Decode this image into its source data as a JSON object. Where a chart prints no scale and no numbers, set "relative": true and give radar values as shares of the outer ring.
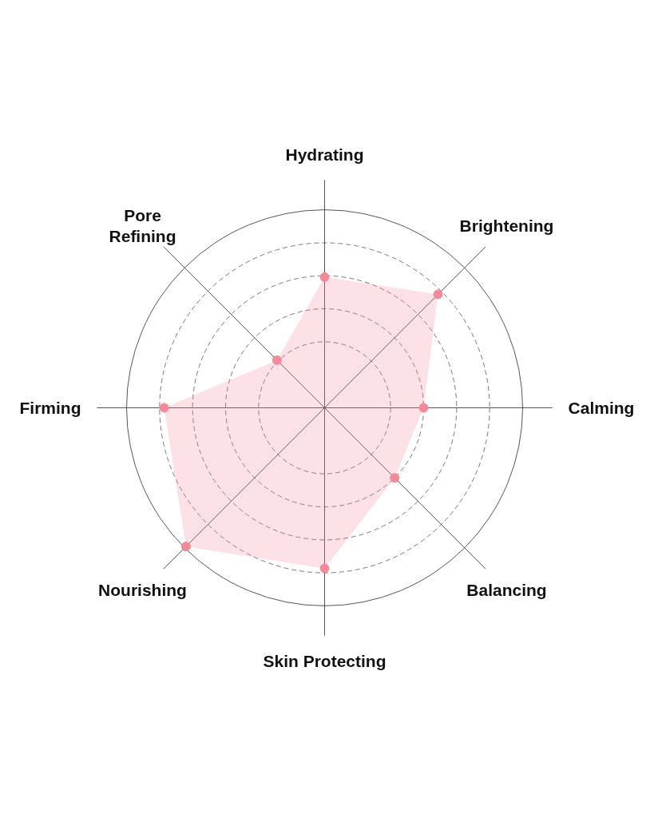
{
  "chart_data": {
    "type": "radar",
    "relative": true,
    "grid": true,
    "marker": "circle",
    "categories": [
      "Hydrating",
      "Brightening",
      "Calming",
      "Balancing",
      "Skin Protecting",
      "Nourishing",
      "Firming",
      "Pore\nRefining"
    ],
    "series": [
      {
        "color": "#f4899a",
        "values": [
          0.66,
          0.81,
          0.5,
          0.5,
          0.81,
          0.99,
          0.81,
          0.34
        ]
      }
    ]
  }
}
